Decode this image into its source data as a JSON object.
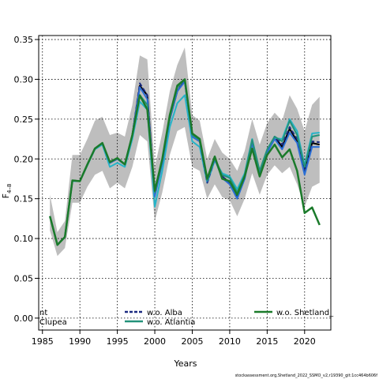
{
  "chart_data": {
    "type": "line",
    "title": "",
    "xlabel": "Years",
    "ylabel": "F",
    "ylabel_sub": "4–8",
    "xlim": [
      1984.5,
      2023.5
    ],
    "ylim": [
      -0.015,
      0.355
    ],
    "xticks": [
      1985,
      1990,
      1995,
      2000,
      2005,
      2010,
      2015,
      2020
    ],
    "xtick_labels": [
      "1985",
      "1990",
      "1995",
      "2000",
      "2005",
      "2010",
      "2015",
      "2020"
    ],
    "yticks": [
      0.0,
      0.05,
      0.1,
      0.15,
      0.2,
      0.25,
      0.3,
      0.35
    ],
    "ytick_labels": [
      "0.00",
      "0.05",
      "0.10",
      "0.15",
      "0.20",
      "0.25",
      "0.30",
      "0.35"
    ],
    "grid": true,
    "x": [
      1986,
      1987,
      1988,
      1989,
      1990,
      1991,
      1992,
      1993,
      1994,
      1995,
      1996,
      1997,
      1998,
      1999,
      2000,
      2001,
      2002,
      2003,
      2004,
      2005,
      2006,
      2007,
      2008,
      2009,
      2010,
      2011,
      2012,
      2013,
      2014,
      2015,
      2016,
      2017,
      2018,
      2019,
      2020,
      2021,
      2022
    ],
    "band": {
      "color": "#bebebe",
      "upper": [
        0.155,
        0.108,
        0.122,
        0.205,
        0.205,
        0.225,
        0.248,
        0.253,
        0.23,
        0.233,
        0.228,
        0.268,
        0.33,
        0.325,
        0.19,
        0.233,
        0.285,
        0.318,
        0.34,
        0.255,
        0.248,
        0.2,
        0.225,
        0.208,
        0.2,
        0.185,
        0.21,
        0.25,
        0.218,
        0.245,
        0.258,
        0.248,
        0.28,
        0.263,
        0.235,
        0.268,
        0.278
      ],
      "lower": [
        0.11,
        0.078,
        0.088,
        0.145,
        0.145,
        0.165,
        0.18,
        0.185,
        0.163,
        0.17,
        0.163,
        0.19,
        0.23,
        0.222,
        0.122,
        0.158,
        0.205,
        0.235,
        0.24,
        0.19,
        0.185,
        0.15,
        0.168,
        0.152,
        0.148,
        0.128,
        0.15,
        0.182,
        0.155,
        0.18,
        0.192,
        0.182,
        0.19,
        0.168,
        0.14,
        0.165,
        0.17
      ]
    },
    "series": [
      {
        "name": "",
        "color": "#000000",
        "width": 2,
        "values": [
          0.128,
          0.092,
          0.102,
          0.173,
          0.172,
          0.193,
          0.213,
          0.22,
          0.195,
          0.2,
          0.193,
          0.23,
          0.292,
          0.28,
          0.155,
          0.197,
          0.25,
          0.285,
          0.298,
          0.228,
          0.222,
          0.172,
          0.2,
          0.178,
          0.17,
          0.152,
          0.177,
          0.222,
          0.183,
          0.21,
          0.228,
          0.215,
          0.238,
          0.222,
          0.185,
          0.22,
          0.218
        ]
      },
      {
        "name": "",
        "color": "#26b4c8",
        "width": 2,
        "values": [
          0.128,
          0.092,
          0.102,
          0.172,
          0.172,
          0.192,
          0.212,
          0.218,
          0.19,
          0.195,
          0.19,
          0.225,
          0.272,
          0.262,
          0.14,
          0.185,
          0.24,
          0.27,
          0.28,
          0.222,
          0.215,
          0.17,
          0.198,
          0.182,
          0.178,
          0.162,
          0.182,
          0.225,
          0.183,
          0.21,
          0.226,
          0.225,
          0.25,
          0.235,
          0.192,
          0.232,
          0.233
        ]
      },
      {
        "name": "w.o. Alba",
        "color": "#1a2a80",
        "width": 2,
        "dashed": true,
        "values": [
          0.128,
          0.092,
          0.102,
          0.173,
          0.172,
          0.193,
          0.213,
          0.22,
          0.195,
          0.2,
          0.193,
          0.23,
          0.295,
          0.28,
          0.156,
          0.197,
          0.25,
          0.285,
          0.3,
          0.228,
          0.222,
          0.17,
          0.2,
          0.178,
          0.17,
          0.152,
          0.177,
          0.222,
          0.183,
          0.21,
          0.228,
          0.218,
          0.24,
          0.225,
          0.186,
          0.222,
          0.221
        ]
      },
      {
        "name": "",
        "color": "#2b6fd6",
        "width": 2,
        "values": [
          0.128,
          0.092,
          0.102,
          0.173,
          0.172,
          0.193,
          0.213,
          0.22,
          0.195,
          0.2,
          0.193,
          0.23,
          0.29,
          0.275,
          0.153,
          0.195,
          0.25,
          0.285,
          0.297,
          0.228,
          0.222,
          0.172,
          0.2,
          0.176,
          0.168,
          0.15,
          0.175,
          0.22,
          0.18,
          0.208,
          0.225,
          0.212,
          0.233,
          0.22,
          0.18,
          0.215,
          0.215
        ]
      },
      {
        "name": "w.o. Atlantia",
        "color": "#23927a",
        "width": 2,
        "values": [
          0.128,
          0.092,
          0.102,
          0.173,
          0.172,
          0.193,
          0.213,
          0.22,
          0.196,
          0.201,
          0.193,
          0.23,
          0.28,
          0.268,
          0.158,
          0.198,
          0.252,
          0.29,
          0.3,
          0.23,
          0.224,
          0.173,
          0.201,
          0.18,
          0.176,
          0.158,
          0.18,
          0.224,
          0.185,
          0.212,
          0.228,
          0.222,
          0.248,
          0.23,
          0.19,
          0.228,
          0.23
        ]
      },
      {
        "name": "w.o. Shetland_",
        "color": "#1a7a2a",
        "width": 2.5,
        "values": [
          0.128,
          0.092,
          0.102,
          0.173,
          0.172,
          0.193,
          0.213,
          0.22,
          0.196,
          0.201,
          0.193,
          0.23,
          0.28,
          0.262,
          0.16,
          0.2,
          0.255,
          0.292,
          0.3,
          0.232,
          0.225,
          0.175,
          0.203,
          0.175,
          0.172,
          0.155,
          0.178,
          0.213,
          0.178,
          0.205,
          0.218,
          0.202,
          0.212,
          0.185,
          0.132,
          0.139,
          0.117
        ]
      }
    ],
    "legend": {
      "placement": "bottom",
      "left_entries": [
        "nt",
        "Clupea"
      ],
      "entries": [
        {
          "label": "w.o. Alba",
          "color": "#1a2a80",
          "style": "dashed"
        },
        {
          "label": "w.o. Atlantia",
          "color": "#23927a",
          "style": "solid"
        },
        {
          "label": "w.o. Shetland_",
          "color": "#1a7a2a",
          "style": "solid"
        }
      ]
    },
    "footer": "stockassessment.org,Shetland_2022_SSMO_v2,r19390_git:1cc464b606f"
  }
}
